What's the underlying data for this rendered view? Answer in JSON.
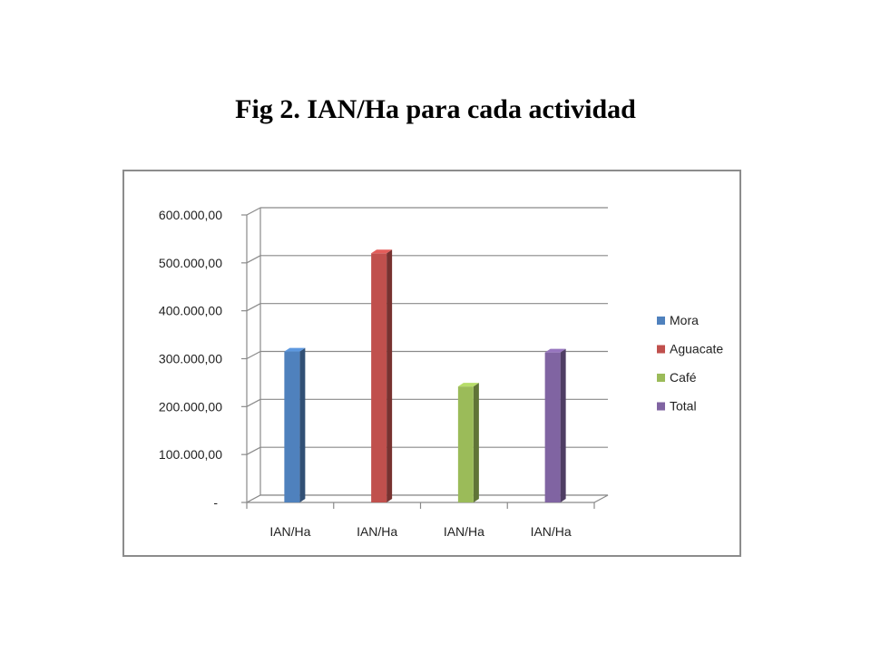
{
  "slide": {
    "title": "Fig 2. IAN/Ha para cada actividad"
  },
  "chart_data": {
    "type": "bar",
    "title": "",
    "xlabel": "",
    "ylabel": "",
    "ylim": [
      0,
      600000
    ],
    "y_ticks": [
      0,
      100000,
      200000,
      300000,
      400000,
      500000,
      600000
    ],
    "y_tick_labels": [
      "-",
      "100.000,00",
      "200.000,00",
      "300.000,00",
      "400.000,00",
      "500.000,00",
      "600.000,00"
    ],
    "categories": [
      "IAN/Ha",
      "IAN/Ha",
      "IAN/Ha",
      "IAN/Ha"
    ],
    "series": [
      {
        "name": "Mora",
        "value": 315000,
        "color": "#4F81BD"
      },
      {
        "name": "Aguacate",
        "value": 520000,
        "color": "#C0504D"
      },
      {
        "name": "Café",
        "value": 242000,
        "color": "#9BBB59"
      },
      {
        "name": "Total",
        "value": 313000,
        "color": "#8064A2"
      }
    ],
    "grid": true,
    "legend_position": "right",
    "style": "3d-columns"
  }
}
